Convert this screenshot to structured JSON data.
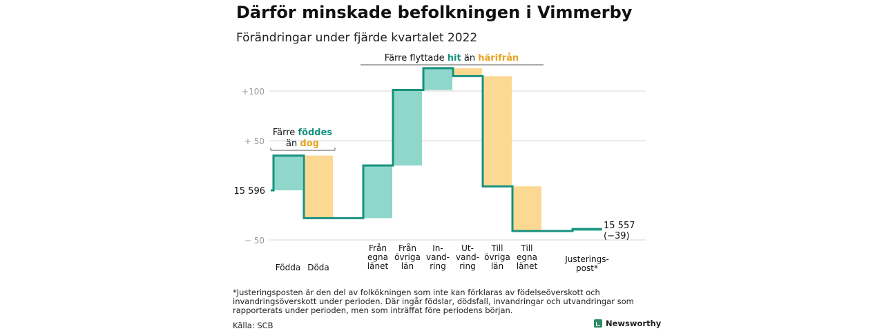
{
  "header": {
    "title": "Därför minskade befolkningen i Vimmerby",
    "subtitle": "Förändringar under fjärde kvartalet 2022"
  },
  "colors": {
    "increase": "#8ed7ca",
    "decrease": "#fcd992",
    "line": "#17917f",
    "teal_text": "#17917f",
    "orange_text": "#e8a320"
  },
  "chart_data": {
    "type": "waterfall",
    "start_value": 15596,
    "start_label": "15 596",
    "end_label": "15 557",
    "end_change_label": "(−39)",
    "yticks": [
      {
        "value": 100,
        "label": "+100"
      },
      {
        "value": 50,
        "label": "+ 50"
      },
      {
        "value": -50,
        "label": "− 50"
      }
    ],
    "categories": [
      "Födda",
      "Döda",
      "Från egna länet",
      "Från övriga län",
      "In-vandring",
      "Ut-vandring",
      "Till övriga län",
      "Till egna länet",
      "Justerings-post*"
    ],
    "category_lines": [
      [
        "Födda"
      ],
      [
        "Döda"
      ],
      [
        "Från",
        "egna",
        "länet"
      ],
      [
        "Från",
        "övriga",
        "län"
      ],
      [
        "In-",
        "vand-",
        "ring"
      ],
      [
        "Ut-",
        "vand-",
        "ring"
      ],
      [
        "Till",
        "övriga",
        "län"
      ],
      [
        "Till",
        "egna",
        "länet"
      ],
      [
        "Justerings-",
        "post*"
      ]
    ],
    "changes": [
      35,
      -63,
      53,
      76,
      22,
      -8,
      -111,
      -45,
      2
    ],
    "annotations": [
      {
        "text_parts": [
          [
            "Färre ",
            "plain"
          ],
          [
            "föddes",
            "teal"
          ]
        ],
        "text_parts2": [
          [
            "än ",
            "plain"
          ],
          [
            "dog",
            "orange"
          ]
        ]
      },
      {
        "text_parts": [
          [
            "Färre flyttade ",
            "plain"
          ],
          [
            "hit",
            "teal"
          ],
          [
            " än ",
            "plain"
          ],
          [
            "härifrån",
            "orange"
          ]
        ]
      }
    ]
  },
  "footer": {
    "footnote": "*Justeringsposten är den del av folkökningen som inte kan förklaras av födelseöverskott och invandringsöverskott under perioden. Där ingår födslar, dödsfall, invandringar och utvandringar som rapporterats under perioden, men som inträffat före periodens början.",
    "source": "Källa: SCB",
    "brand": "Newsworthy"
  }
}
